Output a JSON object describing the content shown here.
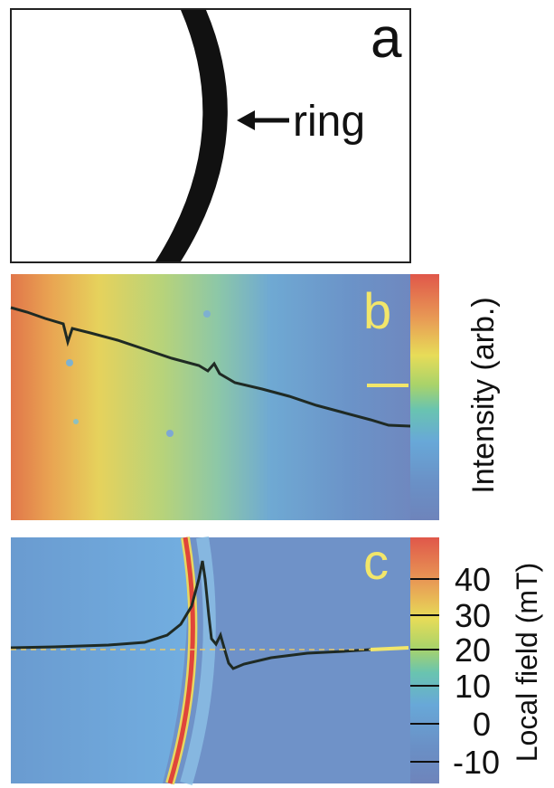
{
  "panel_a": {
    "label": "a",
    "annotation": "ring"
  },
  "panel_b": {
    "label": "b",
    "colorbar_label": "Intensity (arb.)"
  },
  "panel_c": {
    "label": "c",
    "colorbar_label": "Local field (mT)",
    "colorbar_ticks": [
      "40",
      "30",
      "20",
      "10",
      "0",
      "-10"
    ]
  },
  "colors": {
    "label_yellow": "#f2e66a",
    "ring_red": "#e0453a",
    "trace": "#1f2a24"
  }
}
